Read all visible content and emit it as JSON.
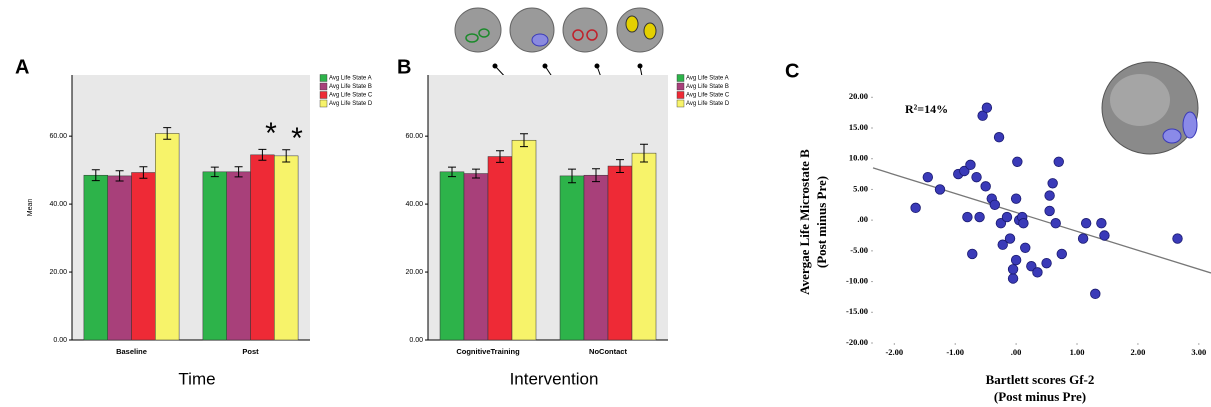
{
  "chart_data": [
    {
      "type": "bar",
      "panel_label": "A",
      "ylabel": "Mean",
      "xlabel": "Time",
      "categories": [
        "Baseline",
        "Post"
      ],
      "series": [
        {
          "name": "Avg Life State A",
          "color": "#2db34a",
          "values": [
            48.5,
            49.5
          ],
          "errors": [
            1.6,
            1.4
          ]
        },
        {
          "name": "Avg Life State B",
          "color": "#a8407a",
          "values": [
            48.3,
            49.5
          ],
          "errors": [
            1.5,
            1.5
          ]
        },
        {
          "name": "Avg Life State C",
          "color": "#ee2a36",
          "values": [
            49.3,
            54.5
          ],
          "errors": [
            1.7,
            1.6
          ]
        },
        {
          "name": "Avg Life State D",
          "color": "#f7f36a",
          "values": [
            60.8,
            54.2
          ],
          "errors": [
            1.7,
            1.8
          ]
        }
      ],
      "ylim": [
        0,
        78
      ],
      "yticks": [
        {
          "value": 0,
          "label": "0.00"
        },
        {
          "value": 20,
          "label": "20.00"
        },
        {
          "value": 40,
          "label": "40.00"
        },
        {
          "value": 60,
          "label": "60.00"
        }
      ],
      "background": "#e8e8e8",
      "annotations": [
        "*",
        "*"
      ]
    },
    {
      "type": "bar",
      "panel_label": "B",
      "xlabel": "Intervention",
      "categories": [
        "CognitiveTraining",
        "NoContact"
      ],
      "series": [
        {
          "name": "Avg Life State A",
          "color": "#2db34a",
          "values": [
            49.5,
            48.3
          ],
          "errors": [
            1.4,
            2.0
          ]
        },
        {
          "name": "Avg Life State B",
          "color": "#a8407a",
          "values": [
            49.0,
            48.5
          ],
          "errors": [
            1.3,
            1.9
          ]
        },
        {
          "name": "Avg Life State C",
          "color": "#ee2a36",
          "values": [
            54.0,
            51.2
          ],
          "errors": [
            1.7,
            1.9
          ]
        },
        {
          "name": "Avg Life State D",
          "color": "#f7f36a",
          "values": [
            58.8,
            55.0
          ],
          "errors": [
            1.9,
            2.6
          ]
        }
      ],
      "ylim": [
        0,
        78
      ],
      "yticks": [
        {
          "value": 0,
          "label": "0.00"
        },
        {
          "value": 20,
          "label": "20.00"
        },
        {
          "value": 40,
          "label": "40.00"
        },
        {
          "value": 60,
          "label": "60.00"
        }
      ],
      "background": "#e8e8e8"
    },
    {
      "type": "scatter",
      "panel_label": "C",
      "ylabel": [
        "Avergae Life Microstate B",
        "(Post minus Pre)"
      ],
      "xlabel": [
        "Bartlett scores Gf-2",
        "(Post minus Pre)"
      ],
      "annotations": [
        "R²=14%"
      ],
      "color": "#3a3ab8",
      "x": [
        -1.65,
        -1.45,
        -1.25,
        -0.95,
        -0.85,
        -0.75,
        -0.8,
        -0.72,
        -0.65,
        -0.6,
        -0.55,
        -0.48,
        -0.5,
        -0.4,
        -0.35,
        -0.28,
        -0.25,
        -0.22,
        -0.15,
        -0.1,
        -0.05,
        -0.05,
        0.0,
        0.0,
        0.02,
        0.05,
        0.1,
        0.12,
        0.15,
        0.25,
        0.35,
        0.5,
        0.55,
        0.55,
        0.6,
        0.65,
        0.7,
        0.75,
        1.1,
        1.15,
        1.3,
        1.4,
        1.45,
        2.65
      ],
      "values": [
        2.0,
        7.0,
        5.0,
        7.5,
        8.0,
        9.0,
        0.5,
        -5.5,
        7.0,
        0.5,
        17.0,
        18.3,
        5.5,
        3.5,
        2.5,
        13.5,
        -0.5,
        -4.0,
        0.5,
        -3.0,
        -9.5,
        -8.0,
        -6.5,
        3.5,
        9.5,
        0.0,
        0.5,
        -0.5,
        -4.5,
        -7.5,
        -8.5,
        -7.0,
        4.0,
        1.5,
        6.0,
        -0.5,
        9.5,
        -5.5,
        -3.0,
        -0.5,
        -12.0,
        -0.5,
        -2.5,
        -3.0
      ],
      "trendline": {
        "x": [
          -2.35,
          3.2
        ],
        "y": [
          8.5,
          -8.6
        ]
      },
      "xlim": [
        -2.35,
        3.2
      ],
      "ylim": [
        -20,
        22
      ],
      "xticks": [
        {
          "value": -2,
          "label": "-2.00"
        },
        {
          "value": -1,
          "label": "-1.00"
        },
        {
          "value": 0,
          "label": ".00"
        },
        {
          "value": 1,
          "label": "1.00"
        },
        {
          "value": 2,
          "label": "2.00"
        },
        {
          "value": 3,
          "label": "3.00"
        }
      ],
      "yticks": [
        {
          "value": 20,
          "label": "20.00"
        },
        {
          "value": 15,
          "label": "15.00"
        },
        {
          "value": 10,
          "label": "10.00"
        },
        {
          "value": 5,
          "label": "5.00"
        },
        {
          "value": 0,
          "label": ".00"
        },
        {
          "value": -5,
          "label": "-5.00"
        },
        {
          "value": -10,
          "label": "-10.00"
        },
        {
          "value": -15,
          "label": "-15.00"
        },
        {
          "value": -20,
          "label": "-20.00"
        }
      ]
    }
  ]
}
